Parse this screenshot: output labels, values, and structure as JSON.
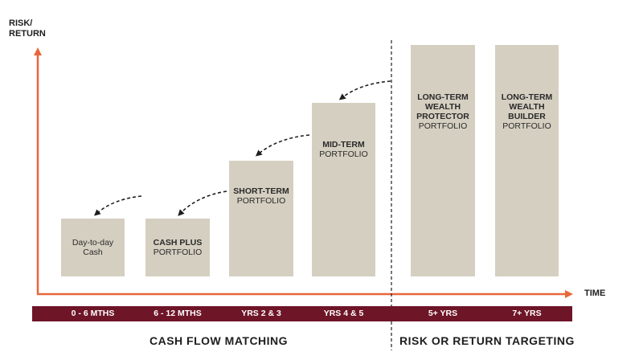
{
  "y_axis_label": [
    "RISK/",
    "RETURN"
  ],
  "x_axis_label": "TIME",
  "bars": [
    {
      "lines_bold": [],
      "lines": [
        "Day-to-day",
        "Cash"
      ]
    },
    {
      "lines_bold": [
        "CASH PLUS"
      ],
      "lines": [
        "PORTFOLIO"
      ]
    },
    {
      "lines_bold": [
        "SHORT-TERM"
      ],
      "lines": [
        "PORTFOLIO"
      ]
    },
    {
      "lines_bold": [
        "MID-TERM"
      ],
      "lines": [
        "PORTFOLIO"
      ]
    },
    {
      "lines_bold": [
        "LONG-TERM",
        "WEALTH",
        "PROTECTOR"
      ],
      "lines": [
        "PORTFOLIO"
      ]
    },
    {
      "lines_bold": [
        "LONG-TERM",
        "WEALTH",
        "BUILDER"
      ],
      "lines": [
        "PORTFOLIO"
      ]
    }
  ],
  "timeline": [
    "0 - 6 MTHS",
    "6 - 12 MTHS",
    "YRS 2 & 3",
    "YRS 4 & 5",
    "5+ YRS",
    "7+ YRS"
  ],
  "sections": {
    "left": "CASH FLOW MATCHING",
    "right": "RISK OR RETURN TARGETING"
  },
  "colors": {
    "axis": "#e8673a",
    "bar": "#d5cfc1",
    "band": "#6e1528"
  }
}
